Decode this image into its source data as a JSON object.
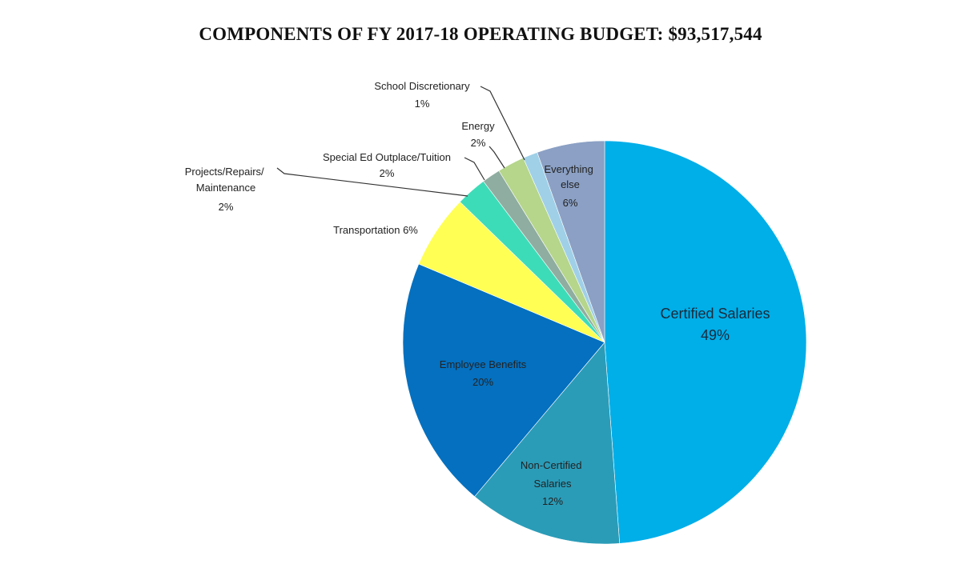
{
  "chart_data": {
    "type": "pie",
    "title": "COMPONENTS OF FY 2017-18 OPERATING BUDGET:  $93,517,544",
    "slices": [
      {
        "label": "Certified Salaries",
        "value_label": "49%",
        "value": 49.5,
        "color": "#00aee8"
      },
      {
        "label": "Non-Certified Salaries",
        "value_label": "12%",
        "value": 12.5,
        "color": "#2a9cb8"
      },
      {
        "label": "Employee Benefits",
        "value_label": "20%",
        "value": 20.5,
        "color": "#0470bf"
      },
      {
        "label": "Transportation",
        "value_label": "6%",
        "value": 6,
        "color": "#ffff54"
      },
      {
        "label": "Projects/Repairs/ Maintenance",
        "value_label": "2%",
        "value": 2.5,
        "color": "#3ddcb8"
      },
      {
        "label": "Special Ed Outplace/Tuition",
        "value_label": "2%",
        "value": 1.5,
        "color": "#8fada0"
      },
      {
        "label": "Energy",
        "value_label": "2%",
        "value": 2.2,
        "color": "#b5d68b"
      },
      {
        "label": "School Discretionary",
        "value_label": "1%",
        "value": 1.2,
        "color": "#9fd0e8"
      },
      {
        "label": "Everything else",
        "value_label": "6%",
        "value": 5.5,
        "color": "#8ba0c4"
      }
    ]
  }
}
